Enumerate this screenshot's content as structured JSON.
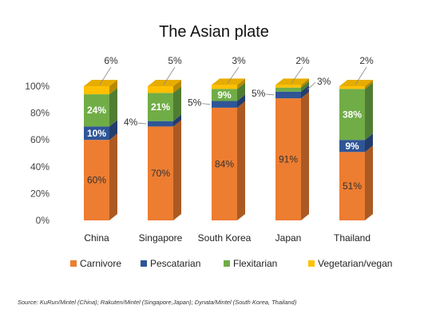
{
  "chart_data": {
    "type": "bar",
    "stacked": true,
    "title": "The Asian plate",
    "categories": [
      "China",
      "Singapore",
      "South Korea",
      "Japan",
      "Thailand"
    ],
    "series": [
      {
        "name": "Carnivore",
        "values": [
          60,
          70,
          84,
          91,
          51
        ],
        "color": "#ED7D31"
      },
      {
        "name": "Pescatarian",
        "values": [
          10,
          4,
          5,
          5,
          9
        ],
        "color": "#2F5597"
      },
      {
        "name": "Flexitarian",
        "values": [
          24,
          21,
          9,
          3,
          38
        ],
        "color": "#70AD47"
      },
      {
        "name": "Vegetarian/vegan",
        "values": [
          6,
          5,
          3,
          2,
          2
        ],
        "color": "#FFC000"
      }
    ],
    "data_labels": [
      [
        "60%",
        "10%",
        "24%",
        "6%"
      ],
      [
        "70%",
        "4%",
        "21%",
        "5%"
      ],
      [
        "84%",
        "5%",
        "9%",
        "3%"
      ],
      [
        "91%",
        "5%",
        "3%",
        "2%"
      ],
      [
        "51%",
        "9%",
        "38%",
        "2%"
      ]
    ],
    "ylim": [
      0,
      100
    ],
    "yticks": [
      "0%",
      "20%",
      "40%",
      "60%",
      "80%",
      "100%"
    ],
    "legend_position": "bottom",
    "grid": false,
    "source": "Source: KuRun/Mintel (China); Rakuten/Mintel (Singapore,Japan); Dynata/Mintel (South Korea, Thailand)"
  }
}
